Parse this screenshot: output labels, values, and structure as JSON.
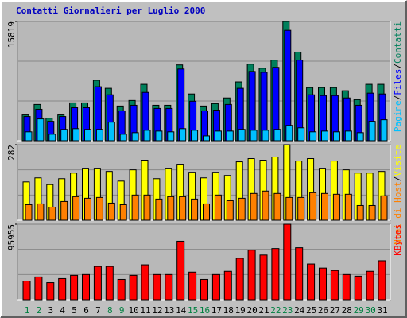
{
  "title": "Contatti Giornalieri per Luglio 2000",
  "chart_data": [
    {
      "type": "bar",
      "ylim": [
        0,
        15819
      ],
      "yticks": [
        15819
      ],
      "legend_separator": "/",
      "series": [
        {
          "name": "Contatti",
          "color": "#00805c",
          "values": [
            3420,
            4810,
            2990,
            3420,
            5020,
            5020,
            8020,
            6950,
            4600,
            5340,
            7480,
            4700,
            4700,
            10050,
            6200,
            4600,
            4920,
            5670,
            7800,
            10150,
            9620,
            10690,
            15819,
            11760,
            7050,
            7050,
            7050,
            6630,
            5450,
            7480,
            7480
          ]
        },
        {
          "name": "Files",
          "color": "#0000ff",
          "values": [
            3210,
            4170,
            2570,
            3210,
            4380,
            4380,
            7160,
            6090,
            3960,
            4700,
            6410,
            4280,
            4280,
            9510,
            5240,
            3960,
            4060,
            4810,
            6950,
            9190,
            9080,
            9730,
            14640,
            10690,
            6090,
            5990,
            5990,
            5670,
            4700,
            6310,
            6200
          ]
        },
        {
          "name": "Pagine",
          "color": "#00c0ff",
          "values": [
            1180,
            2890,
            860,
            1500,
            1600,
            1500,
            1500,
            2460,
            860,
            1070,
            1390,
            1280,
            1180,
            1600,
            1390,
            640,
            1280,
            1280,
            1500,
            1390,
            1390,
            1500,
            2030,
            1710,
            1180,
            1280,
            1180,
            1280,
            1070,
            2570,
            2780
          ]
        }
      ]
    },
    {
      "type": "bar",
      "ylim": [
        0,
        282
      ],
      "yticks": [
        282
      ],
      "legend_separator": "/",
      "series": [
        {
          "name": "Visite",
          "color": "#ffff00",
          "values": [
            143,
            158,
            133,
            155,
            176,
            194,
            194,
            182,
            146,
            188,
            224,
            155,
            194,
            209,
            179,
            158,
            179,
            167,
            218,
            230,
            224,
            236,
            282,
            221,
            230,
            194,
            221,
            188,
            176,
            176,
            182
          ]
        },
        {
          "name": "Nomi di Host",
          "color": "#ff8000",
          "values": [
            58,
            61,
            49,
            70,
            88,
            82,
            85,
            64,
            58,
            94,
            94,
            79,
            88,
            88,
            79,
            61,
            94,
            73,
            82,
            100,
            109,
            100,
            85,
            85,
            103,
            100,
            97,
            97,
            55,
            55,
            91
          ]
        }
      ]
    },
    {
      "type": "bar",
      "ylim": [
        0,
        95955
      ],
      "yticks": [
        95955
      ],
      "categories": [
        "1",
        "2",
        "3",
        "4",
        "5",
        "6",
        "7",
        "8",
        "9",
        "10",
        "11",
        "12",
        "13",
        "14",
        "15",
        "16",
        "17",
        "18",
        "19",
        "20",
        "21",
        "22",
        "23",
        "24",
        "25",
        "26",
        "27",
        "28",
        "29",
        "30",
        "31"
      ],
      "category_colors": [
        "#008040",
        "#008040",
        "#000000",
        "#000000",
        "#000000",
        "#000000",
        "#000000",
        "#008040",
        "#008040",
        "#000000",
        "#000000",
        "#000000",
        "#000000",
        "#000000",
        "#008040",
        "#008040",
        "#000000",
        "#000000",
        "#000000",
        "#000000",
        "#000000",
        "#008040",
        "#008040",
        "#000000",
        "#000000",
        "#000000",
        "#000000",
        "#000000",
        "#008040",
        "#008040",
        "#000000"
      ],
      "series": [
        {
          "name": "KBytes",
          "color": "#ff0000",
          "values": [
            23730,
            28890,
            21670,
            26830,
            30950,
            31980,
            42300,
            42300,
            25790,
            30950,
            44370,
            31980,
            31980,
            74290,
            35080,
            25790,
            31980,
            36110,
            52620,
            62940,
            56750,
            65000,
            95955,
            66030,
            45400,
            40240,
            37140,
            31980,
            29920,
            36110,
            49520
          ]
        }
      ]
    }
  ]
}
